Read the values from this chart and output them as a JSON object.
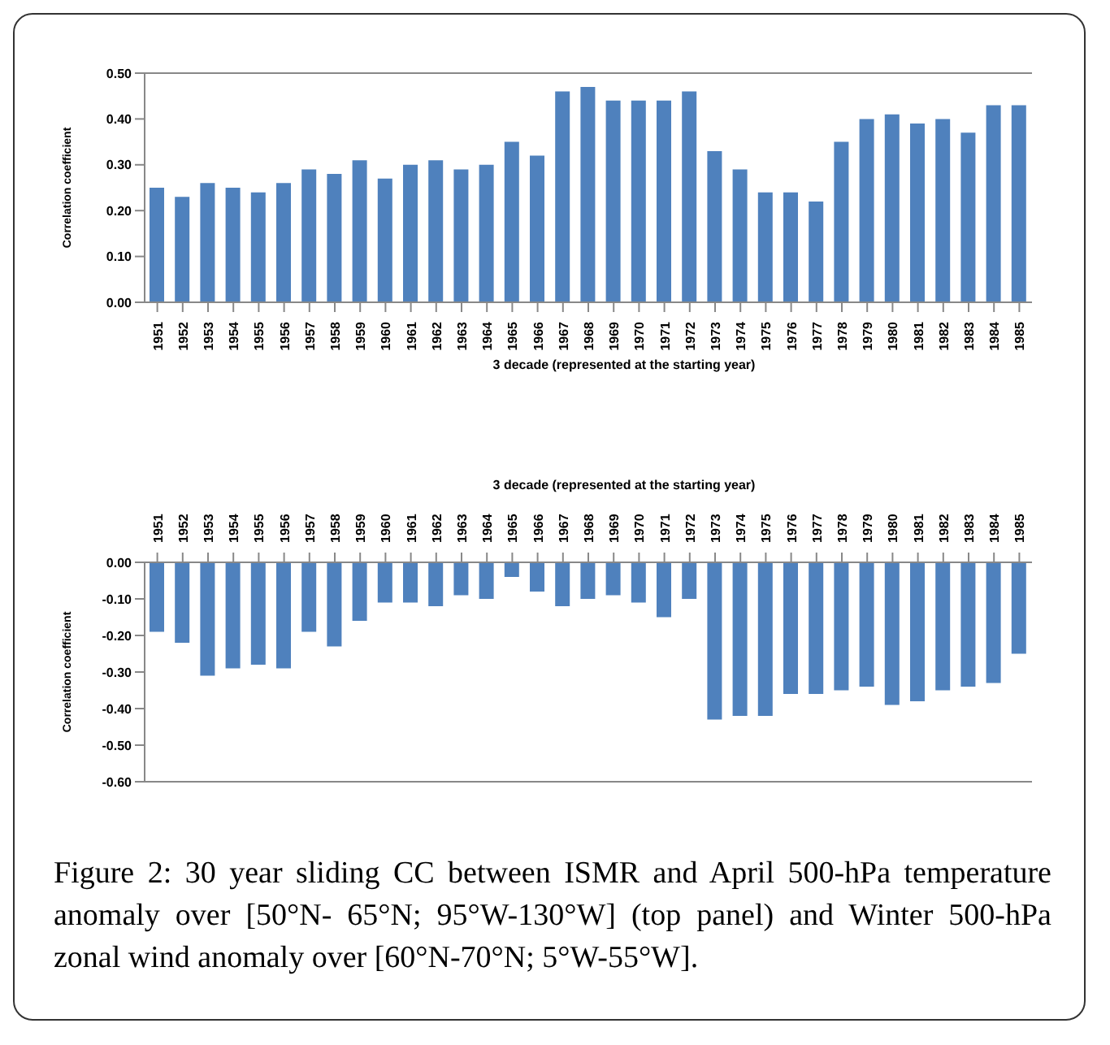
{
  "chart_data": [
    {
      "type": "bar",
      "xlabel": "3 decade (represented at the starting year)",
      "ylabel": "Correlation coefficient",
      "categories": [
        "1951",
        "1952",
        "1953",
        "1954",
        "1955",
        "1956",
        "1957",
        "1958",
        "1959",
        "1960",
        "1961",
        "1962",
        "1963",
        "1964",
        "1965",
        "1966",
        "1967",
        "1968",
        "1969",
        "1970",
        "1971",
        "1972",
        "1973",
        "1974",
        "1975",
        "1976",
        "1977",
        "1978",
        "1979",
        "1980",
        "1981",
        "1982",
        "1983",
        "1984",
        "1985"
      ],
      "values": [
        0.25,
        0.23,
        0.26,
        0.25,
        0.24,
        0.26,
        0.29,
        0.28,
        0.31,
        0.27,
        0.3,
        0.31,
        0.29,
        0.3,
        0.35,
        0.32,
        0.46,
        0.47,
        0.44,
        0.44,
        0.44,
        0.46,
        0.33,
        0.29,
        0.24,
        0.24,
        0.22,
        0.35,
        0.4,
        0.41,
        0.39,
        0.4,
        0.37,
        0.43,
        0.43
      ],
      "color": "#4f81bd",
      "ylim": [
        0,
        0.5
      ],
      "yticks": [
        {
          "value": 0,
          "label": "0.00"
        },
        {
          "value": 0.1,
          "label": "0.10"
        },
        {
          "value": 0.2,
          "label": "0.20"
        },
        {
          "value": 0.3,
          "label": "0.30"
        },
        {
          "value": 0.4,
          "label": "0.40"
        },
        {
          "value": 0.5,
          "label": "0.50"
        }
      ],
      "grid": false,
      "legend": false
    },
    {
      "type": "bar",
      "xlabel": "3 decade (represented at the starting year)",
      "ylabel": "Correlation coefficient",
      "categories": [
        "1951",
        "1952",
        "1953",
        "1954",
        "1955",
        "1956",
        "1957",
        "1958",
        "1959",
        "1960",
        "1961",
        "1962",
        "1963",
        "1964",
        "1965",
        "1966",
        "1967",
        "1968",
        "1969",
        "1970",
        "1971",
        "1972",
        "1973",
        "1974",
        "1975",
        "1976",
        "1977",
        "1978",
        "1979",
        "1980",
        "1981",
        "1982",
        "1983",
        "1984",
        "1985"
      ],
      "values": [
        -0.19,
        -0.22,
        -0.31,
        -0.29,
        -0.28,
        -0.29,
        -0.19,
        -0.23,
        -0.16,
        -0.11,
        -0.11,
        -0.12,
        -0.09,
        -0.1,
        -0.04,
        -0.08,
        -0.12,
        -0.1,
        -0.09,
        -0.11,
        -0.15,
        -0.1,
        -0.43,
        -0.42,
        -0.42,
        -0.36,
        -0.36,
        -0.35,
        -0.34,
        -0.39,
        -0.38,
        -0.35,
        -0.34,
        -0.33,
        -0.25
      ],
      "color": "#4f81bd",
      "ylim": [
        -0.6,
        0
      ],
      "yticks": [
        {
          "value": -0.6,
          "label": "-0.60"
        },
        {
          "value": -0.5,
          "label": "-0.50"
        },
        {
          "value": -0.4,
          "label": "-0.40"
        },
        {
          "value": -0.3,
          "label": "-0.30"
        },
        {
          "value": -0.2,
          "label": "-0.20"
        },
        {
          "value": -0.1,
          "label": "-0.10"
        },
        {
          "value": 0,
          "label": "0.00"
        }
      ],
      "grid": false,
      "legend": false,
      "annotations": [
        "Figure 2: 30 year sliding CC between ISMR and April 500-hPa temperature anomaly over [50°N- 65°N; 95°W-130°W] (top panel) and Winter 500-hPa zonal wind anomaly over [60°N-70°N; 5°W-55°W]."
      ]
    }
  ]
}
